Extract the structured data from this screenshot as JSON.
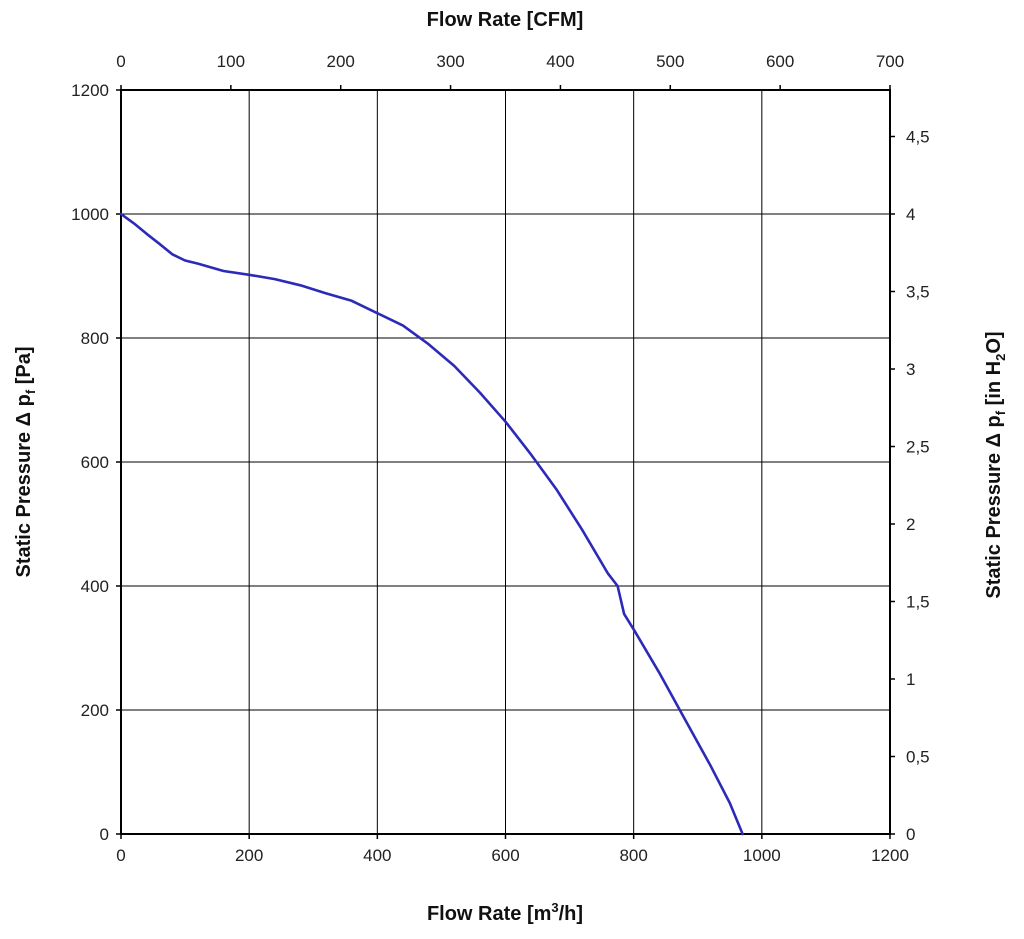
{
  "chart_data": {
    "type": "line",
    "title": "",
    "xlabel_bottom": {
      "prefix": "Flow Rate [m",
      "sup": "3",
      "suffix": "/h]"
    },
    "xlabel_top": "Flow Rate [CFM]",
    "ylabel_left": {
      "prefix": "Static Pressure Δ p",
      "sub": "f",
      "suffix": " [Pa]"
    },
    "ylabel_right": {
      "prefix": "Static Pressure Δ p",
      "sub1": "f",
      "mid": " [in H",
      "sub2": "2",
      "suffix": "O]"
    },
    "xlim": [
      0,
      1200
    ],
    "ylim": [
      0,
      1200
    ],
    "x2lim": [
      0,
      700
    ],
    "y2lim": [
      0,
      4.8
    ],
    "grid": true,
    "x_ticks": [
      "0",
      "200",
      "400",
      "600",
      "800",
      "1000",
      "1200"
    ],
    "y_ticks": [
      "0",
      "200",
      "400",
      "600",
      "800",
      "1000",
      "1200"
    ],
    "x2_ticks": [
      "0",
      "100",
      "200",
      "300",
      "400",
      "500",
      "600",
      "700"
    ],
    "y2_ticks": [
      "0",
      "0,5",
      "1",
      "1,5",
      "2",
      "2,5",
      "3",
      "3,5",
      "4",
      "4,5"
    ],
    "series": [
      {
        "name": "Static Pressure",
        "color": "#2b2bb8",
        "x": [
          0,
          20,
          40,
          60,
          80,
          100,
          120,
          160,
          200,
          240,
          280,
          320,
          360,
          400,
          440,
          480,
          520,
          560,
          600,
          640,
          680,
          720,
          760,
          775,
          785,
          800,
          840,
          880,
          920,
          950,
          970
        ],
        "y": [
          1000,
          985,
          968,
          952,
          935,
          925,
          920,
          908,
          902,
          895,
          885,
          872,
          860,
          840,
          820,
          790,
          755,
          712,
          665,
          612,
          555,
          490,
          420,
          400,
          355,
          330,
          260,
          185,
          110,
          50,
          0
        ]
      }
    ]
  }
}
